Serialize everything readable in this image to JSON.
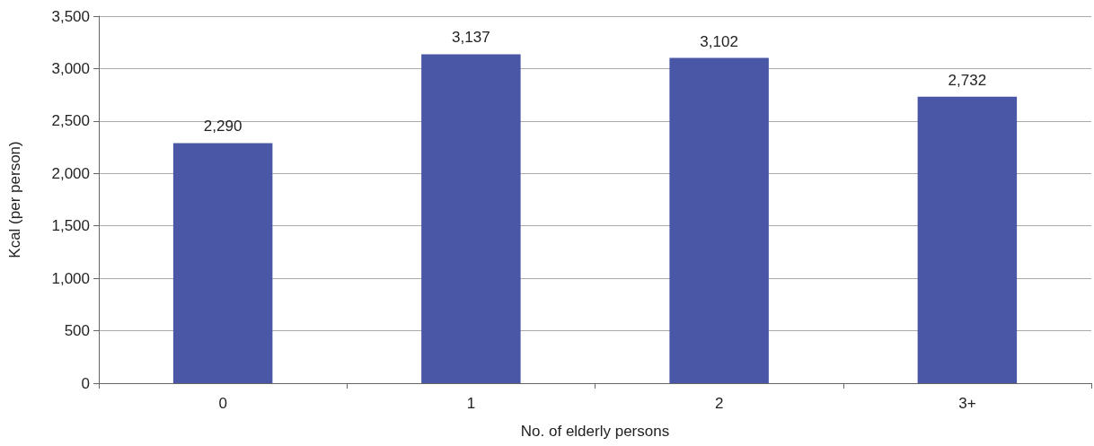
{
  "chart_data": {
    "type": "bar",
    "xlabel": "No. of elderly persons",
    "ylabel": "Kcal (per person)",
    "categories": [
      "0",
      "1",
      "2",
      "3+"
    ],
    "values": [
      2290,
      3137,
      3102,
      2732
    ],
    "value_labels": [
      "2,290",
      "3,137",
      "3,102",
      "2,732"
    ],
    "color": "#4a57a6",
    "ylim": [
      0,
      3500
    ],
    "yticks": [
      {
        "value": 0,
        "label": "0"
      },
      {
        "value": 500,
        "label": "500"
      },
      {
        "value": 1000,
        "label": "1,000"
      },
      {
        "value": 1500,
        "label": "1,500"
      },
      {
        "value": 2000,
        "label": "2,000"
      },
      {
        "value": 2500,
        "label": "2,500"
      },
      {
        "value": 3000,
        "label": "3,000"
      },
      {
        "value": 3500,
        "label": "3,500"
      }
    ],
    "grid": "y"
  }
}
